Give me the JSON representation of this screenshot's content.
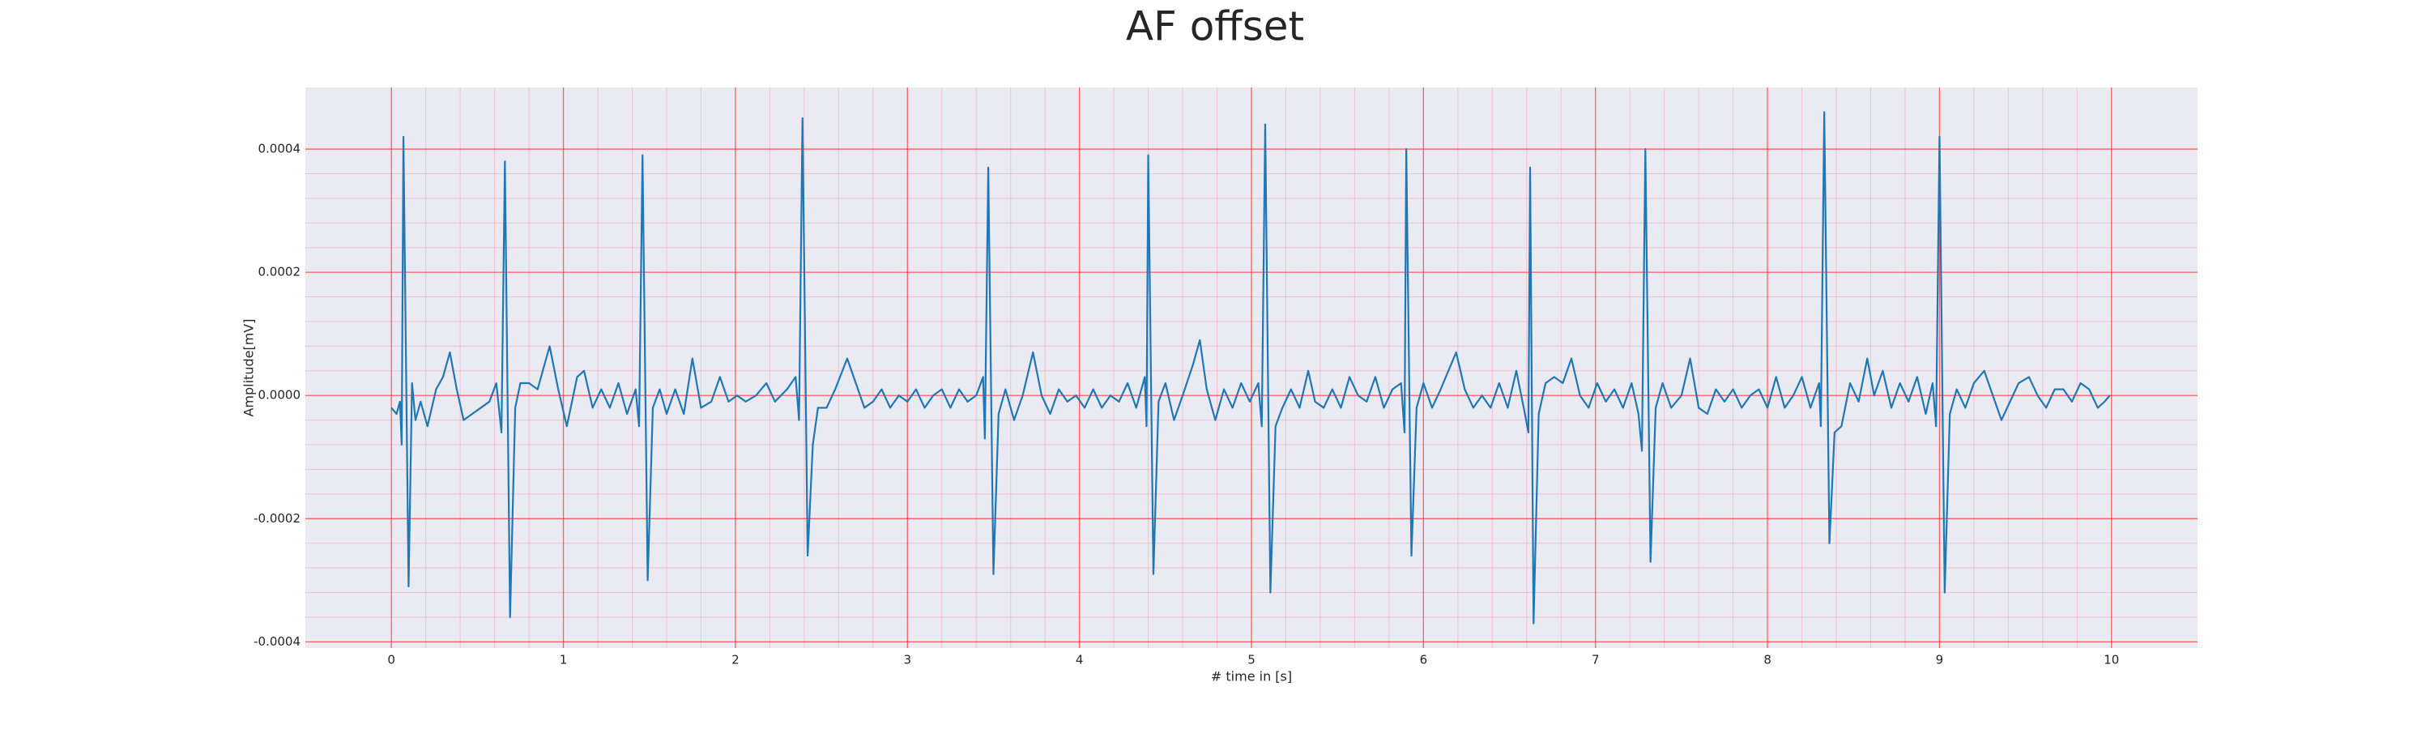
{
  "chart_data": {
    "type": "line",
    "title": "AF offset",
    "xlabel": "# time in [s]",
    "ylabel": "Amplitude[mV]",
    "color": "#1f77b4",
    "grid": true,
    "minor_grid": true,
    "xlim": [
      -0.5,
      10.5
    ],
    "ylim": [
      -0.00041,
      0.0005
    ],
    "xticks": [
      0,
      1,
      2,
      3,
      4,
      5,
      6,
      7,
      8,
      9,
      10
    ],
    "yticks": [
      {
        "value": -0.0004,
        "label": "-0.0004"
      },
      {
        "value": -0.0002,
        "label": "-0.0002"
      },
      {
        "value": 0,
        "label": "0.0000"
      },
      {
        "value": 0.0002,
        "label": "0.0002"
      },
      {
        "value": 0.0004,
        "label": "0.0004"
      }
    ],
    "x": [
      0.0,
      0.03,
      0.05,
      0.06,
      0.07,
      0.1,
      0.12,
      0.14,
      0.17,
      0.21,
      0.26,
      0.3,
      0.34,
      0.38,
      0.42,
      0.47,
      0.52,
      0.57,
      0.61,
      0.64,
      0.66,
      0.69,
      0.72,
      0.75,
      0.8,
      0.85,
      0.92,
      0.97,
      1.02,
      1.08,
      1.12,
      1.17,
      1.22,
      1.27,
      1.32,
      1.37,
      1.42,
      1.44,
      1.46,
      1.49,
      1.52,
      1.56,
      1.6,
      1.65,
      1.7,
      1.75,
      1.8,
      1.86,
      1.91,
      1.96,
      2.01,
      2.06,
      2.12,
      2.18,
      2.23,
      2.3,
      2.35,
      2.37,
      2.39,
      2.42,
      2.45,
      2.48,
      2.53,
      2.58,
      2.65,
      2.7,
      2.75,
      2.8,
      2.85,
      2.9,
      2.95,
      3.0,
      3.05,
      3.1,
      3.15,
      3.2,
      3.25,
      3.3,
      3.35,
      3.4,
      3.44,
      3.45,
      3.47,
      3.5,
      3.53,
      3.57,
      3.62,
      3.67,
      3.73,
      3.78,
      3.83,
      3.88,
      3.93,
      3.98,
      4.03,
      4.08,
      4.13,
      4.18,
      4.23,
      4.28,
      4.33,
      4.38,
      4.39,
      4.4,
      4.43,
      4.46,
      4.5,
      4.55,
      4.6,
      4.66,
      4.7,
      4.74,
      4.79,
      4.84,
      4.89,
      4.94,
      4.99,
      5.04,
      5.06,
      5.08,
      5.11,
      5.14,
      5.18,
      5.23,
      5.28,
      5.33,
      5.37,
      5.42,
      5.47,
      5.52,
      5.57,
      5.62,
      5.67,
      5.72,
      5.77,
      5.82,
      5.87,
      5.89,
      5.9,
      5.93,
      5.96,
      6.0,
      6.05,
      6.1,
      6.19,
      6.24,
      6.29,
      6.34,
      6.39,
      6.44,
      6.49,
      6.54,
      6.59,
      6.61,
      6.62,
      6.64,
      6.67,
      6.71,
      6.76,
      6.81,
      6.86,
      6.91,
      6.96,
      7.01,
      7.06,
      7.11,
      7.16,
      7.21,
      7.25,
      7.27,
      7.29,
      7.32,
      7.35,
      7.39,
      7.44,
      7.5,
      7.55,
      7.6,
      7.65,
      7.7,
      7.75,
      7.8,
      7.85,
      7.9,
      7.95,
      8.0,
      8.05,
      8.1,
      8.15,
      8.2,
      8.25,
      8.3,
      8.31,
      8.33,
      8.36,
      8.39,
      8.43,
      8.48,
      8.53,
      8.58,
      8.62,
      8.67,
      8.72,
      8.77,
      8.82,
      8.87,
      8.92,
      8.96,
      8.98,
      9.0,
      9.03,
      9.06,
      9.1,
      9.15,
      9.2,
      9.26,
      9.31,
      9.36,
      9.41,
      9.46,
      9.52,
      9.57,
      9.62,
      9.67,
      9.72,
      9.77,
      9.82,
      9.87,
      9.92,
      9.96,
      9.99
    ],
    "values": [
      -2e-05,
      -3e-05,
      -1e-05,
      -8e-05,
      0.00042,
      -0.00031,
      2e-05,
      -4e-05,
      -1e-05,
      -5e-05,
      1e-05,
      3e-05,
      7e-05,
      1e-05,
      -4e-05,
      -3e-05,
      -2e-05,
      -1e-05,
      2e-05,
      -6e-05,
      0.00038,
      -0.00036,
      -2e-05,
      2e-05,
      2e-05,
      1e-05,
      8e-05,
      1e-05,
      -5e-05,
      3e-05,
      4e-05,
      -2e-05,
      1e-05,
      -2e-05,
      2e-05,
      -3e-05,
      1e-05,
      -5e-05,
      0.00039,
      -0.0003,
      -2e-05,
      1e-05,
      -3e-05,
      1e-05,
      -3e-05,
      6e-05,
      -2e-05,
      -1e-05,
      3e-05,
      -1e-05,
      0,
      -1e-05,
      0,
      2e-05,
      -1e-05,
      1e-05,
      3e-05,
      -4e-05,
      0.00045,
      -0.00026,
      -8e-05,
      -2e-05,
      -2e-05,
      1e-05,
      6e-05,
      2e-05,
      -2e-05,
      -1e-05,
      1e-05,
      -2e-05,
      0,
      -1e-05,
      1e-05,
      -2e-05,
      0,
      1e-05,
      -2e-05,
      1e-05,
      -1e-05,
      0,
      3e-05,
      -7e-05,
      0.00037,
      -0.00029,
      -3e-05,
      1e-05,
      -4e-05,
      0,
      7e-05,
      0,
      -3e-05,
      1e-05,
      -1e-05,
      0,
      -2e-05,
      1e-05,
      -2e-05,
      0,
      -1e-05,
      2e-05,
      -2e-05,
      3e-05,
      -5e-05,
      0.00039,
      -0.00029,
      -1e-05,
      2e-05,
      -4e-05,
      0,
      5e-05,
      9e-05,
      1e-05,
      -4e-05,
      1e-05,
      -2e-05,
      2e-05,
      -1e-05,
      2e-05,
      -5e-05,
      0.00044,
      -0.00032,
      -5e-05,
      -2e-05,
      1e-05,
      -2e-05,
      4e-05,
      -1e-05,
      -2e-05,
      1e-05,
      -2e-05,
      3e-05,
      0,
      -1e-05,
      3e-05,
      -2e-05,
      1e-05,
      2e-05,
      -6e-05,
      0.0004,
      -0.00026,
      -2e-05,
      2e-05,
      -2e-05,
      1e-05,
      7e-05,
      1e-05,
      -2e-05,
      0,
      -2e-05,
      2e-05,
      -2e-05,
      4e-05,
      -3e-05,
      -6e-05,
      0.00037,
      -0.00037,
      -3e-05,
      2e-05,
      3e-05,
      2e-05,
      6e-05,
      0,
      -2e-05,
      2e-05,
      -1e-05,
      1e-05,
      -2e-05,
      2e-05,
      -3e-05,
      -9e-05,
      0.0004,
      -0.00027,
      -2e-05,
      2e-05,
      -2e-05,
      0,
      6e-05,
      -2e-05,
      -3e-05,
      1e-05,
      -1e-05,
      1e-05,
      -2e-05,
      0,
      1e-05,
      -2e-05,
      3e-05,
      -2e-05,
      0,
      3e-05,
      -2e-05,
      2e-05,
      -5e-05,
      0.00046,
      -0.00024,
      -6e-05,
      -5e-05,
      2e-05,
      -1e-05,
      6e-05,
      0,
      4e-05,
      -2e-05,
      2e-05,
      -1e-05,
      3e-05,
      -3e-05,
      2e-05,
      -5e-05,
      0.00042,
      -0.00032,
      -3e-05,
      1e-05,
      -2e-05,
      2e-05,
      4e-05,
      0,
      -4e-05,
      -1e-05,
      2e-05,
      3e-05,
      0,
      -2e-05,
      1e-05,
      1e-05,
      -1e-05,
      2e-05,
      1e-05,
      -2e-05,
      -1e-05,
      0
    ]
  }
}
